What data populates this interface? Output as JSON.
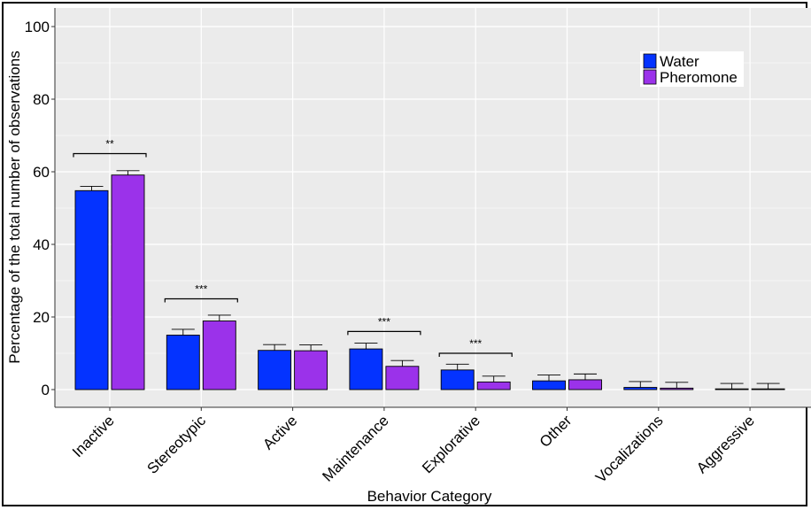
{
  "chart_data": {
    "type": "bar",
    "xlabel": "Behavior Category",
    "ylabel": "Percentage of the total number of observations",
    "ylim": [
      -5,
      104
    ],
    "yticks": [
      0,
      20,
      40,
      60,
      80,
      100
    ],
    "grid": true,
    "legend_position": "top-right",
    "categories": [
      "Inactive",
      "Stereotypic",
      "Active",
      "Maintenance",
      "Explorative",
      "Other",
      "Vocalizations",
      "Aggressive"
    ],
    "series": [
      {
        "name": "Water",
        "color": "#0433ff",
        "values": [
          54.8,
          15.0,
          10.8,
          11.2,
          5.4,
          2.4,
          0.6,
          0.1
        ],
        "errors": [
          1.2,
          1.6,
          1.6,
          1.6,
          1.6,
          1.6,
          1.6,
          1.6
        ]
      },
      {
        "name": "Pheromone",
        "color": "#9b32ea",
        "values": [
          59.1,
          18.9,
          10.7,
          6.4,
          2.1,
          2.7,
          0.4,
          0.1
        ],
        "errors": [
          1.2,
          1.6,
          1.6,
          1.6,
          1.6,
          1.6,
          1.6,
          1.6
        ]
      }
    ],
    "significance": [
      {
        "category": "Inactive",
        "label": "**",
        "y": 65
      },
      {
        "category": "Stereotypic",
        "label": "***",
        "y": 25
      },
      {
        "category": "Maintenance",
        "label": "***",
        "y": 16
      },
      {
        "category": "Explorative",
        "label": "***",
        "y": 10
      }
    ]
  },
  "colors": {
    "panel_bg": "#ebebeb",
    "grid": "#ffffff",
    "bar_outline": "#000000"
  }
}
